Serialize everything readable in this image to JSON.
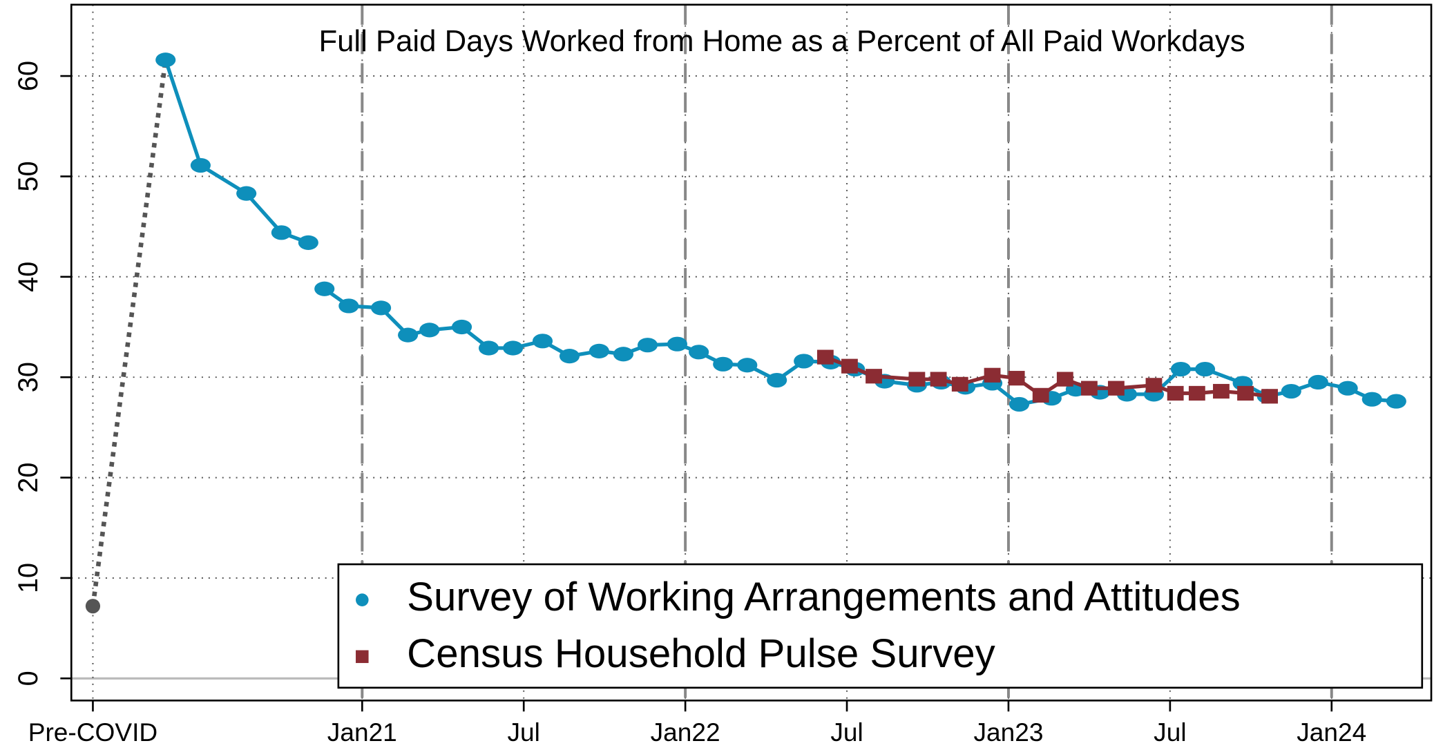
{
  "chart_data": {
    "type": "line",
    "title": "Full Paid Days Worked from Home as a Percent of All Paid Workdays",
    "xlim": [
      -10.8,
      39.7
    ],
    "ylim": [
      -2.2,
      67.1
    ],
    "xticks": [
      {
        "value": -10,
        "label": "Pre-COVID"
      },
      {
        "value": 0,
        "label": "Jan21"
      },
      {
        "value": 6,
        "label": "Jul"
      },
      {
        "value": 12,
        "label": "Jan22"
      },
      {
        "value": 18,
        "label": "Jul"
      },
      {
        "value": 24,
        "label": "Jan23"
      },
      {
        "value": 30,
        "label": "Jul"
      },
      {
        "value": 36,
        "label": "Jan24"
      }
    ],
    "yticks": [
      0,
      10,
      20,
      30,
      40,
      50,
      60
    ],
    "vlines": [
      0,
      12,
      24,
      36
    ],
    "grid": true,
    "precovid_point": {
      "x": -10,
      "value": 7.2,
      "color": "#555555"
    },
    "series": [
      {
        "name": "Survey of Working Arrangements and Attitudes",
        "color": "#0e8fbb",
        "marker": "circle",
        "x": [
          -7.3,
          -6.0,
          -4.3,
          -3.0,
          -2.0,
          null,
          -1.4,
          -0.5,
          0.7,
          1.7,
          2.5,
          3.7,
          4.7,
          5.6,
          6.7,
          7.7,
          8.8,
          9.7,
          10.6,
          11.7,
          12.5,
          13.4,
          14.3,
          15.4,
          16.4,
          17.4,
          18.3,
          19.4,
          20.6,
          21.5,
          22.4,
          23.4,
          24.4,
          25.6,
          26.5,
          27.4,
          28.4,
          29.4,
          30.4,
          31.3,
          32.7,
          33.6,
          34.5,
          35.5,
          36.6,
          37.5,
          38.4
        ],
        "values": [
          61.6,
          51.1,
          48.3,
          44.4,
          43.4,
          null,
          38.8,
          37.1,
          36.9,
          34.2,
          34.7,
          35.0,
          32.9,
          32.9,
          33.6,
          32.1,
          32.6,
          32.3,
          33.2,
          33.3,
          32.5,
          31.3,
          31.2,
          29.7,
          31.6,
          31.5,
          30.8,
          29.6,
          29.2,
          29.5,
          29.0,
          29.4,
          27.3,
          27.9,
          28.8,
          28.5,
          28.3,
          28.3,
          30.8,
          30.8,
          29.4,
          28.1,
          28.6,
          29.5,
          28.9,
          27.8,
          27.6
        ]
      },
      {
        "name": "Census Household Pulse Survey",
        "color": "#8b2c33",
        "marker": "square",
        "x": [
          17.2,
          18.1,
          19.0,
          20.6,
          21.4,
          22.2,
          23.4,
          24.3,
          25.2,
          26.1,
          27.0,
          28.0,
          29.4,
          30.2,
          31.0,
          31.9,
          32.8,
          33.7
        ],
        "values": [
          32.0,
          31.1,
          30.1,
          29.8,
          29.8,
          29.3,
          30.2,
          29.9,
          28.2,
          29.8,
          28.9,
          28.9,
          29.2,
          28.4,
          28.4,
          28.6,
          28.4,
          28.1
        ]
      }
    ]
  }
}
